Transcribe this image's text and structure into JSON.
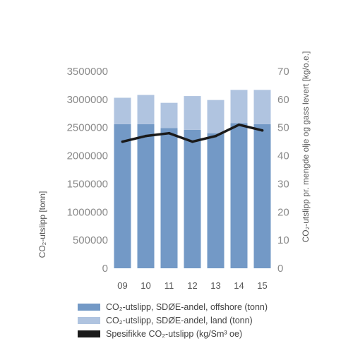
{
  "chart_data": {
    "type": "bar",
    "categories": [
      "09",
      "10",
      "11",
      "12",
      "13",
      "14",
      "15"
    ],
    "series": [
      {
        "name": "CO₂-utslipp, SDØE-andel, offshore (tonn)",
        "kind": "bar",
        "axis": "left",
        "stack": "main",
        "color": "#7399c6",
        "values": [
          2560000,
          2560000,
          2490000,
          2460000,
          2400000,
          2580000,
          2560000
        ]
      },
      {
        "name": "CO₂-utslipp, SDØE-andel, land (tonn)",
        "kind": "bar",
        "axis": "left",
        "stack": "main",
        "color": "#b0c4e0",
        "values": [
          470000,
          520000,
          450000,
          600000,
          590000,
          590000,
          610000
        ]
      },
      {
        "name": "Spesifikke CO₂-utslipp (kg/Sm³ oe)",
        "kind": "line",
        "axis": "right",
        "color": "#1a1a1a",
        "values": [
          45,
          47,
          48,
          45,
          47,
          51,
          49
        ]
      }
    ],
    "ylabel": "CO₂-utslipp [tonn]",
    "y2label": "CO₂-utslipp pr. mengde olje og gass levert [kg/o.e.]",
    "ylim": [
      0,
      3500000
    ],
    "y2lim": [
      0,
      70
    ],
    "yticks": [
      "0",
      "500000",
      "1000000",
      "1500000",
      "2000000",
      "2500000",
      "3000000",
      "3500000"
    ],
    "y2ticks": [
      "0",
      "10",
      "20",
      "30",
      "40",
      "50",
      "60",
      "70"
    ],
    "grid": false,
    "legend_position": "bottom"
  }
}
